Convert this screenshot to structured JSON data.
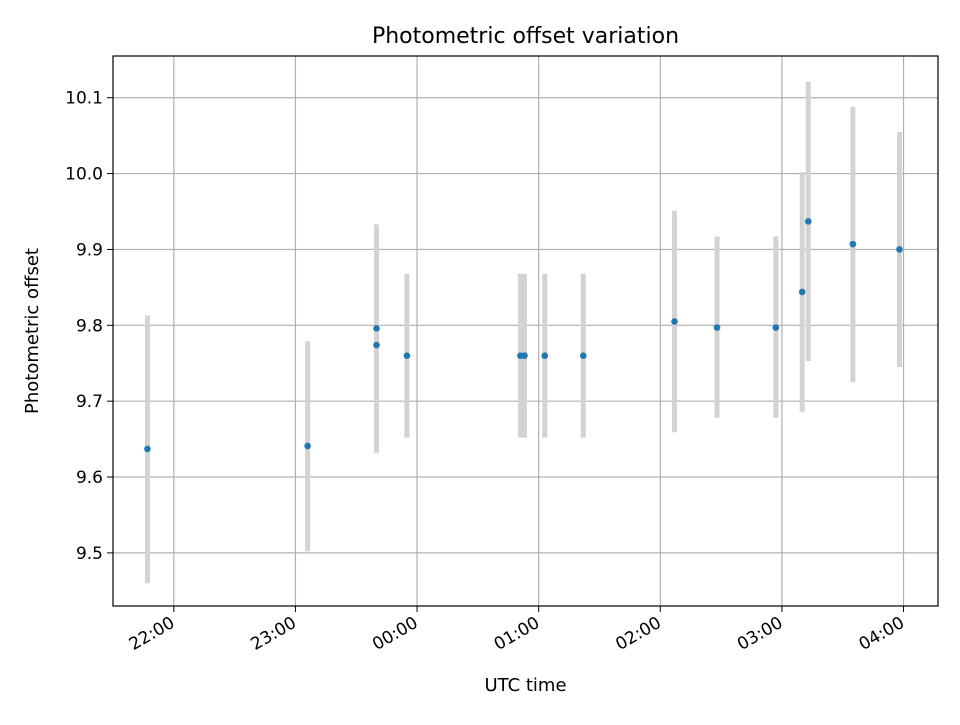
{
  "chart_data": {
    "type": "scatter",
    "title": "Photometric offset variation",
    "xlabel": "UTC time",
    "ylabel": "Photometric offset",
    "x_ticks": [
      "22:00",
      "23:00",
      "00:00",
      "01:00",
      "02:00",
      "03:00",
      "04:00"
    ],
    "y_ticks": [
      "9.5",
      "9.6",
      "9.7",
      "9.8",
      "9.9",
      "10.0",
      "10.1"
    ],
    "ylim": [
      9.43,
      10.155
    ],
    "xlim": [
      "21:30",
      "04:17"
    ],
    "grid": true,
    "series": [
      {
        "marker_color": "#1f77b4",
        "errorbar_color": "#d3d3d3",
        "points": [
          {
            "time": "21:47",
            "y": 9.637,
            "y_low": 9.46,
            "y_high": 9.813
          },
          {
            "time": "23:06",
            "y": 9.641,
            "y_low": 9.502,
            "y_high": 9.779
          },
          {
            "time": "23:40",
            "y": 9.796,
            "y_low": 9.659,
            "y_high": 9.933
          },
          {
            "time": "23:40",
            "y": 9.774,
            "y_low": 9.632,
            "y_high": 9.916
          },
          {
            "time": "23:55",
            "y": 9.76,
            "y_low": 9.652,
            "y_high": 9.868
          },
          {
            "time": "00:51",
            "y": 9.76,
            "y_low": 9.652,
            "y_high": 9.868
          },
          {
            "time": "00:53",
            "y": 9.76,
            "y_low": 9.652,
            "y_high": 9.868
          },
          {
            "time": "01:03",
            "y": 9.76,
            "y_low": 9.652,
            "y_high": 9.868
          },
          {
            "time": "01:22",
            "y": 9.76,
            "y_low": 9.652,
            "y_high": 9.868
          },
          {
            "time": "02:07",
            "y": 9.805,
            "y_low": 9.659,
            "y_high": 9.951
          },
          {
            "time": "02:28",
            "y": 9.797,
            "y_low": 9.678,
            "y_high": 9.917
          },
          {
            "time": "02:57",
            "y": 9.797,
            "y_low": 9.678,
            "y_high": 9.917
          },
          {
            "time": "03:10",
            "y": 9.844,
            "y_low": 9.686,
            "y_high": 10.002
          },
          {
            "time": "03:13",
            "y": 9.937,
            "y_low": 9.753,
            "y_high": 10.121
          },
          {
            "time": "03:35",
            "y": 9.907,
            "y_low": 9.725,
            "y_high": 10.088
          },
          {
            "time": "03:58",
            "y": 9.9,
            "y_low": 9.745,
            "y_high": 10.055
          }
        ]
      }
    ]
  }
}
